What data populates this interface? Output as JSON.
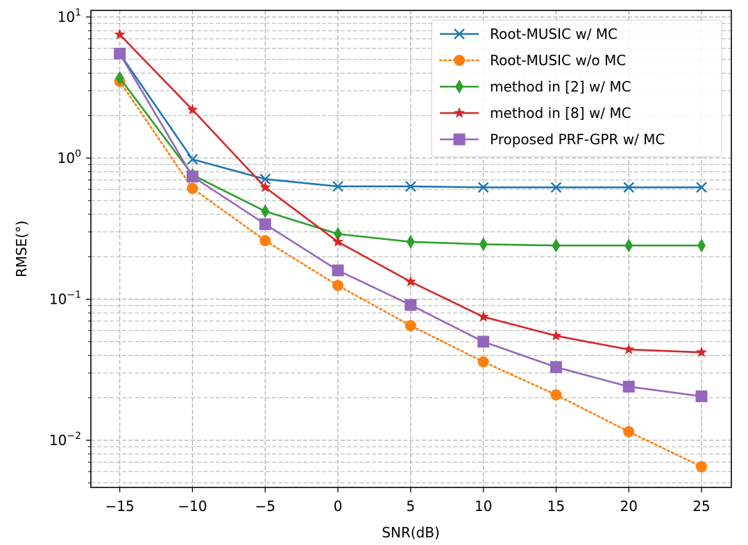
{
  "chart_data": {
    "type": "line",
    "xlabel": "SNR(dB)",
    "ylabel": "RMSE(°)",
    "yscale": "log",
    "xlim": [
      -17,
      27
    ],
    "ylim": [
      0.0047,
      10
    ],
    "grid": true,
    "legend_position": "top-right",
    "x": [
      -15,
      -10,
      -5,
      0,
      5,
      10,
      15,
      20,
      25
    ],
    "x_ticks": [
      "−15",
      "−10",
      "−5",
      "0",
      "5",
      "10",
      "15",
      "20",
      "25"
    ],
    "y_ticks": [
      {
        "value": 10,
        "base": "10",
        "exp": "1"
      },
      {
        "value": 1,
        "base": "10",
        "exp": "0"
      },
      {
        "value": 0.1,
        "base": "10",
        "exp": "−1"
      },
      {
        "value": 0.01,
        "base": "10",
        "exp": "−2"
      }
    ],
    "series": [
      {
        "name": "Root-MUSIC w/ MC",
        "color": "#1f77b4",
        "marker": "x",
        "dash": "solid",
        "values": [
          5.5,
          0.98,
          0.71,
          0.63,
          0.63,
          0.62,
          0.62,
          0.62,
          0.62
        ]
      },
      {
        "name": "Root-MUSIC w/o MC",
        "color": "#ff7f0e",
        "marker": "circle",
        "dash": "dotted",
        "values": [
          3.5,
          0.61,
          0.26,
          0.125,
          0.065,
          0.036,
          0.021,
          0.0115,
          0.0065
        ]
      },
      {
        "name": "method in [2] w/ MC",
        "color": "#2ca02c",
        "marker": "thin_diamond",
        "dash": "solid",
        "values": [
          3.7,
          0.76,
          0.42,
          0.29,
          0.255,
          0.245,
          0.24,
          0.24,
          0.24
        ]
      },
      {
        "name": "method in [8] w/ MC",
        "color": "#d62728",
        "marker": "star",
        "dash": "solid",
        "values": [
          7.5,
          2.2,
          0.62,
          0.255,
          0.133,
          0.075,
          0.055,
          0.044,
          0.042
        ]
      },
      {
        "name": "Proposed PRF-GPR w/ MC",
        "color": "#9467bd",
        "marker": "square",
        "dash": "solid",
        "values": [
          5.5,
          0.74,
          0.34,
          0.16,
          0.091,
          0.05,
          0.033,
          0.024,
          0.0205
        ]
      }
    ]
  }
}
